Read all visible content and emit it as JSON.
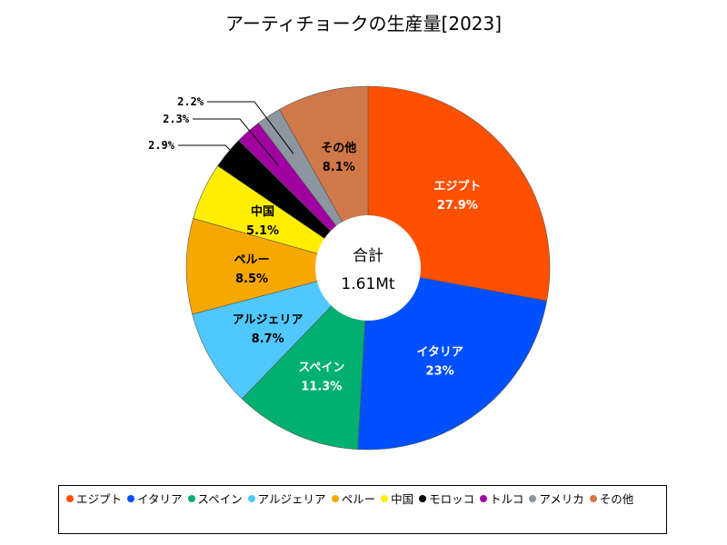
{
  "chart_data": {
    "type": "pie",
    "title": "アーティチョークの生産量[2023]",
    "center_label": {
      "title": "合計",
      "value": "1.61Mt"
    },
    "slices": [
      {
        "name": "エジプト",
        "value": 27.9,
        "label": "27.9%",
        "color": "#ff5000"
      },
      {
        "name": "イタリア",
        "value": 23,
        "label": "23%",
        "color": "#0050ff"
      },
      {
        "name": "スペイン",
        "value": 11.3,
        "label": "11.3%",
        "color": "#00b070"
      },
      {
        "name": "アルジェリア",
        "value": 8.7,
        "label": "8.7%",
        "color": "#50c8ff"
      },
      {
        "name": "ペルー",
        "value": 8.5,
        "label": "8.5%",
        "color": "#f7a800"
      },
      {
        "name": "中国",
        "value": 5.1,
        "label": "5.1%",
        "color": "#ffee00"
      },
      {
        "name": "モロッコ",
        "value": 2.9,
        "label": "2.9%",
        "color": "#000000"
      },
      {
        "name": "トルコ",
        "value": 2.3,
        "label": "2.3%",
        "color": "#a000a0"
      },
      {
        "name": "アメリカ",
        "value": 2.2,
        "label": "2.2%",
        "color": "#8c96a0"
      },
      {
        "name": "その他",
        "value": 8.1,
        "label": "8.1%",
        "color": "#d07848"
      }
    ],
    "legend_placement": "bottom"
  }
}
